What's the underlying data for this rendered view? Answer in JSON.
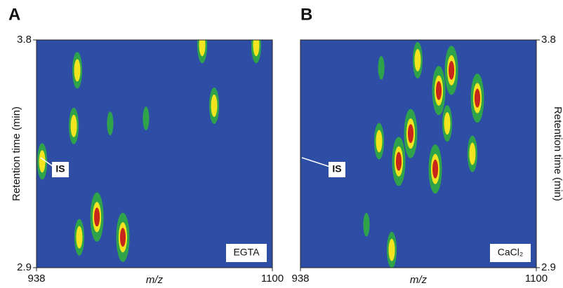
{
  "chart_data": [
    {
      "type": "heatmap",
      "panel": "A",
      "xlabel": "m/z",
      "ylabel": "Retention time (min)",
      "ylabel_side": "left",
      "xlim": [
        938,
        1100
      ],
      "ylim": [
        2.9,
        3.8
      ],
      "xticks": [
        938,
        1100
      ],
      "yticks": [
        2.9,
        3.8
      ],
      "marker": "IS",
      "condition": "EGTA",
      "colors": [
        "#2e4ea6",
        "#2ea34a",
        "#f2e51f",
        "#c8261a"
      ],
      "peak_x": [
        966.0,
        963.6,
        941.9,
        979.5,
        997.3,
        967.4,
        1051.8,
        1060.0,
        1088.9,
        1013.2,
        988.6
      ],
      "peak_y": [
        3.68,
        3.46,
        3.32,
        3.1,
        3.02,
        3.02,
        3.78,
        3.54,
        3.78,
        3.49,
        3.47
      ],
      "peak_level": [
        3,
        3,
        3,
        4,
        4,
        3,
        3,
        3,
        3,
        2,
        2
      ]
    },
    {
      "type": "heatmap",
      "panel": "B",
      "xlabel": "m/z",
      "ylabel": "Retention time (min)",
      "ylabel_side": "right",
      "xlim": [
        938,
        1100
      ],
      "ylim": [
        2.9,
        3.8
      ],
      "xticks": [
        938,
        1100
      ],
      "yticks": [
        2.9,
        3.8
      ],
      "marker": "IS",
      "condition": "CaCl₂",
      "colors": [
        "#2e4ea6",
        "#2ea34a",
        "#f2e51f",
        "#c8261a"
      ],
      "peak_x": [
        1018.5,
        1041.7,
        1033.0,
        1013.7,
        1030.6,
        1038.8,
        1059.5,
        1005.5,
        992.0,
        1000.7,
        983.3,
        1056.1,
        993.5
      ],
      "peak_y": [
        3.72,
        3.68,
        3.6,
        3.43,
        3.29,
        3.47,
        3.57,
        3.32,
        3.4,
        2.97,
        3.07,
        3.35,
        3.69
      ],
      "peak_level": [
        3,
        4,
        4,
        4,
        4,
        3,
        4,
        4,
        3,
        3,
        2,
        3,
        2
      ]
    }
  ]
}
